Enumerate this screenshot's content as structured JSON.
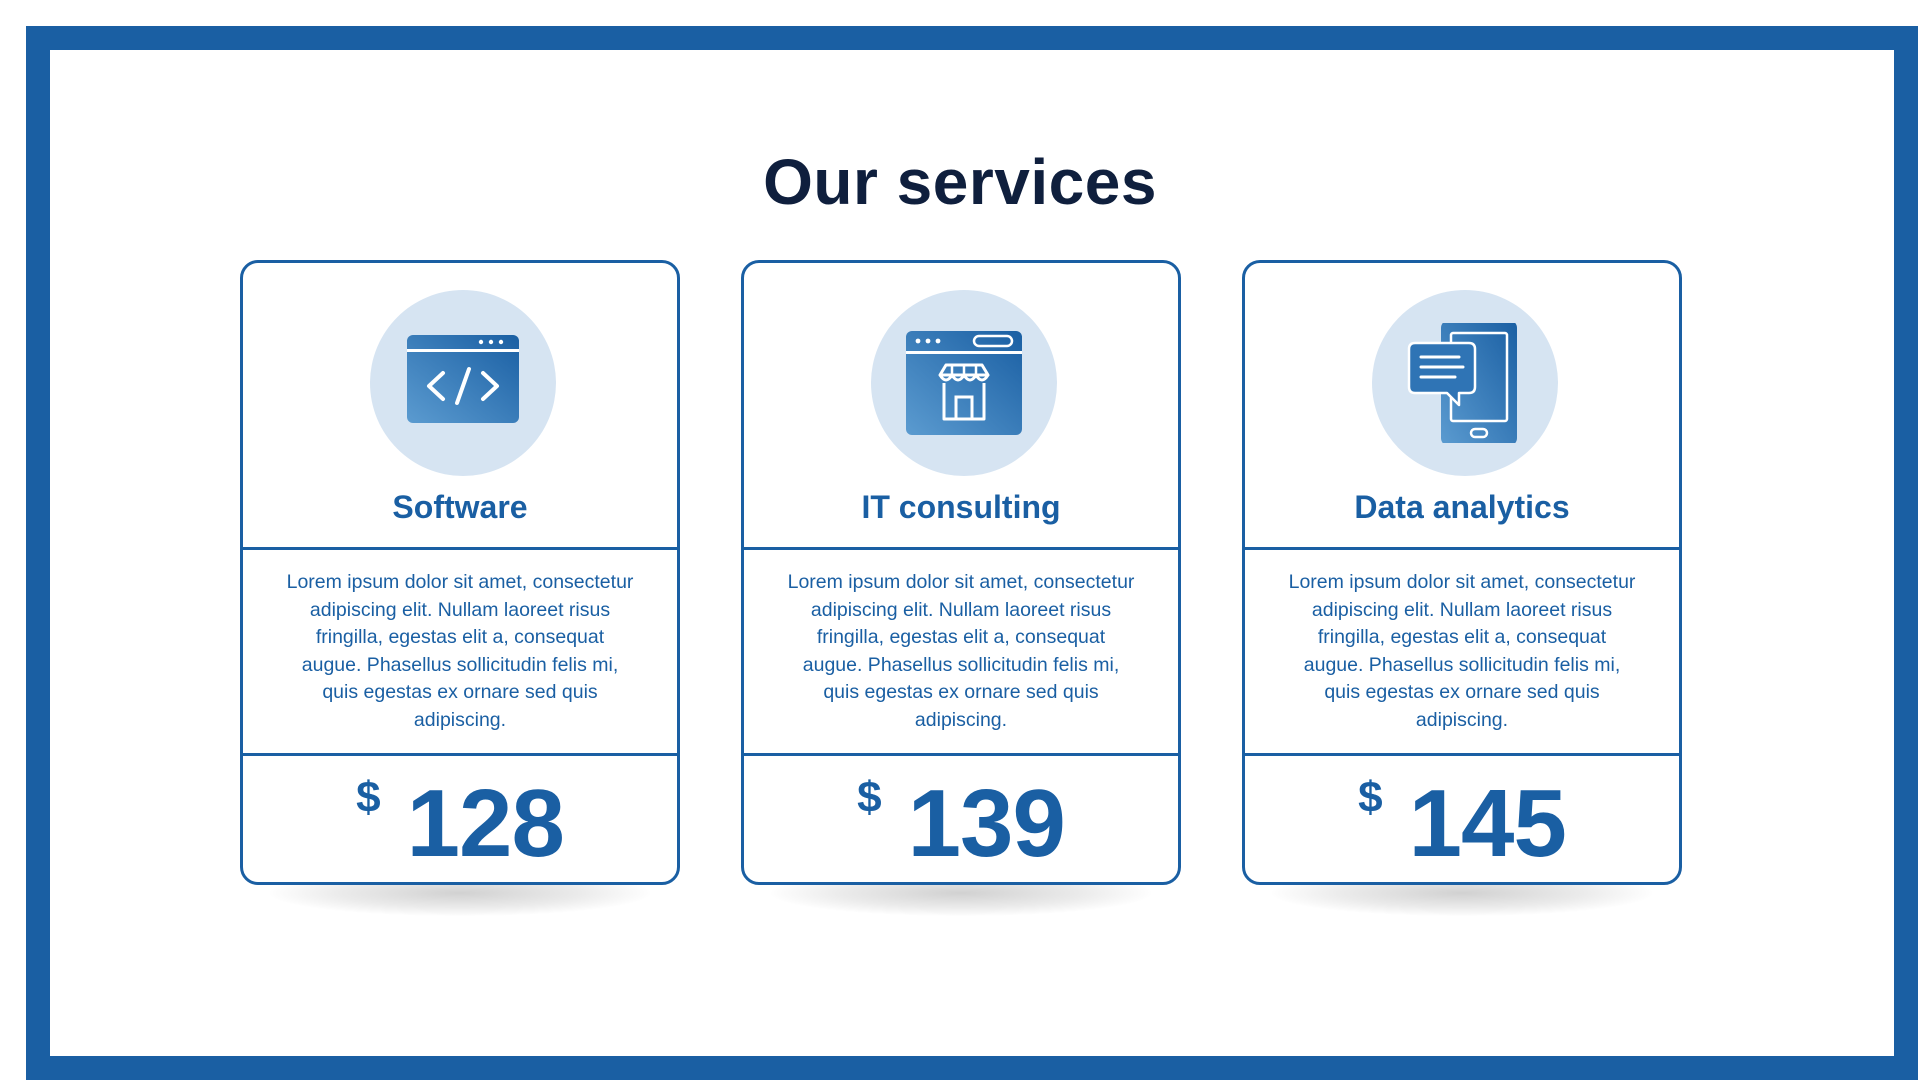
{
  "title": "Our services",
  "colors": {
    "frame": "#1a5fa3",
    "title": "#0f1f3d",
    "accent": "#1a5fa3",
    "icon_circle": "#d6e4f2"
  },
  "cards": [
    {
      "name": "Software",
      "icon": "code-window-icon",
      "description": "Lorem ipsum dolor sit amet, consectetur adipiscing elit. Nullam laoreet risus fringilla, egestas elit a, consequat augue. Phasellus sollicitudin felis mi, quis egestas ex ornare sed quis adipiscing.",
      "currency": "$",
      "price": "128"
    },
    {
      "name": "IT consulting",
      "icon": "web-store-icon",
      "description": "Lorem ipsum dolor sit amet, consectetur adipiscing elit. Nullam laoreet risus fringilla, egestas elit a, consequat augue. Phasellus sollicitudin felis mi, quis egestas ex ornare sed quis adipiscing.",
      "currency": "$",
      "price": "139"
    },
    {
      "name": "Data analytics",
      "icon": "mobile-chat-icon",
      "description": "Lorem ipsum dolor sit amet, consectetur adipiscing elit. Nullam laoreet risus fringilla, egestas elit a, consequat augue. Phasellus sollicitudin felis mi, quis egestas ex ornare sed quis adipiscing.",
      "currency": "$",
      "price": "145"
    }
  ]
}
